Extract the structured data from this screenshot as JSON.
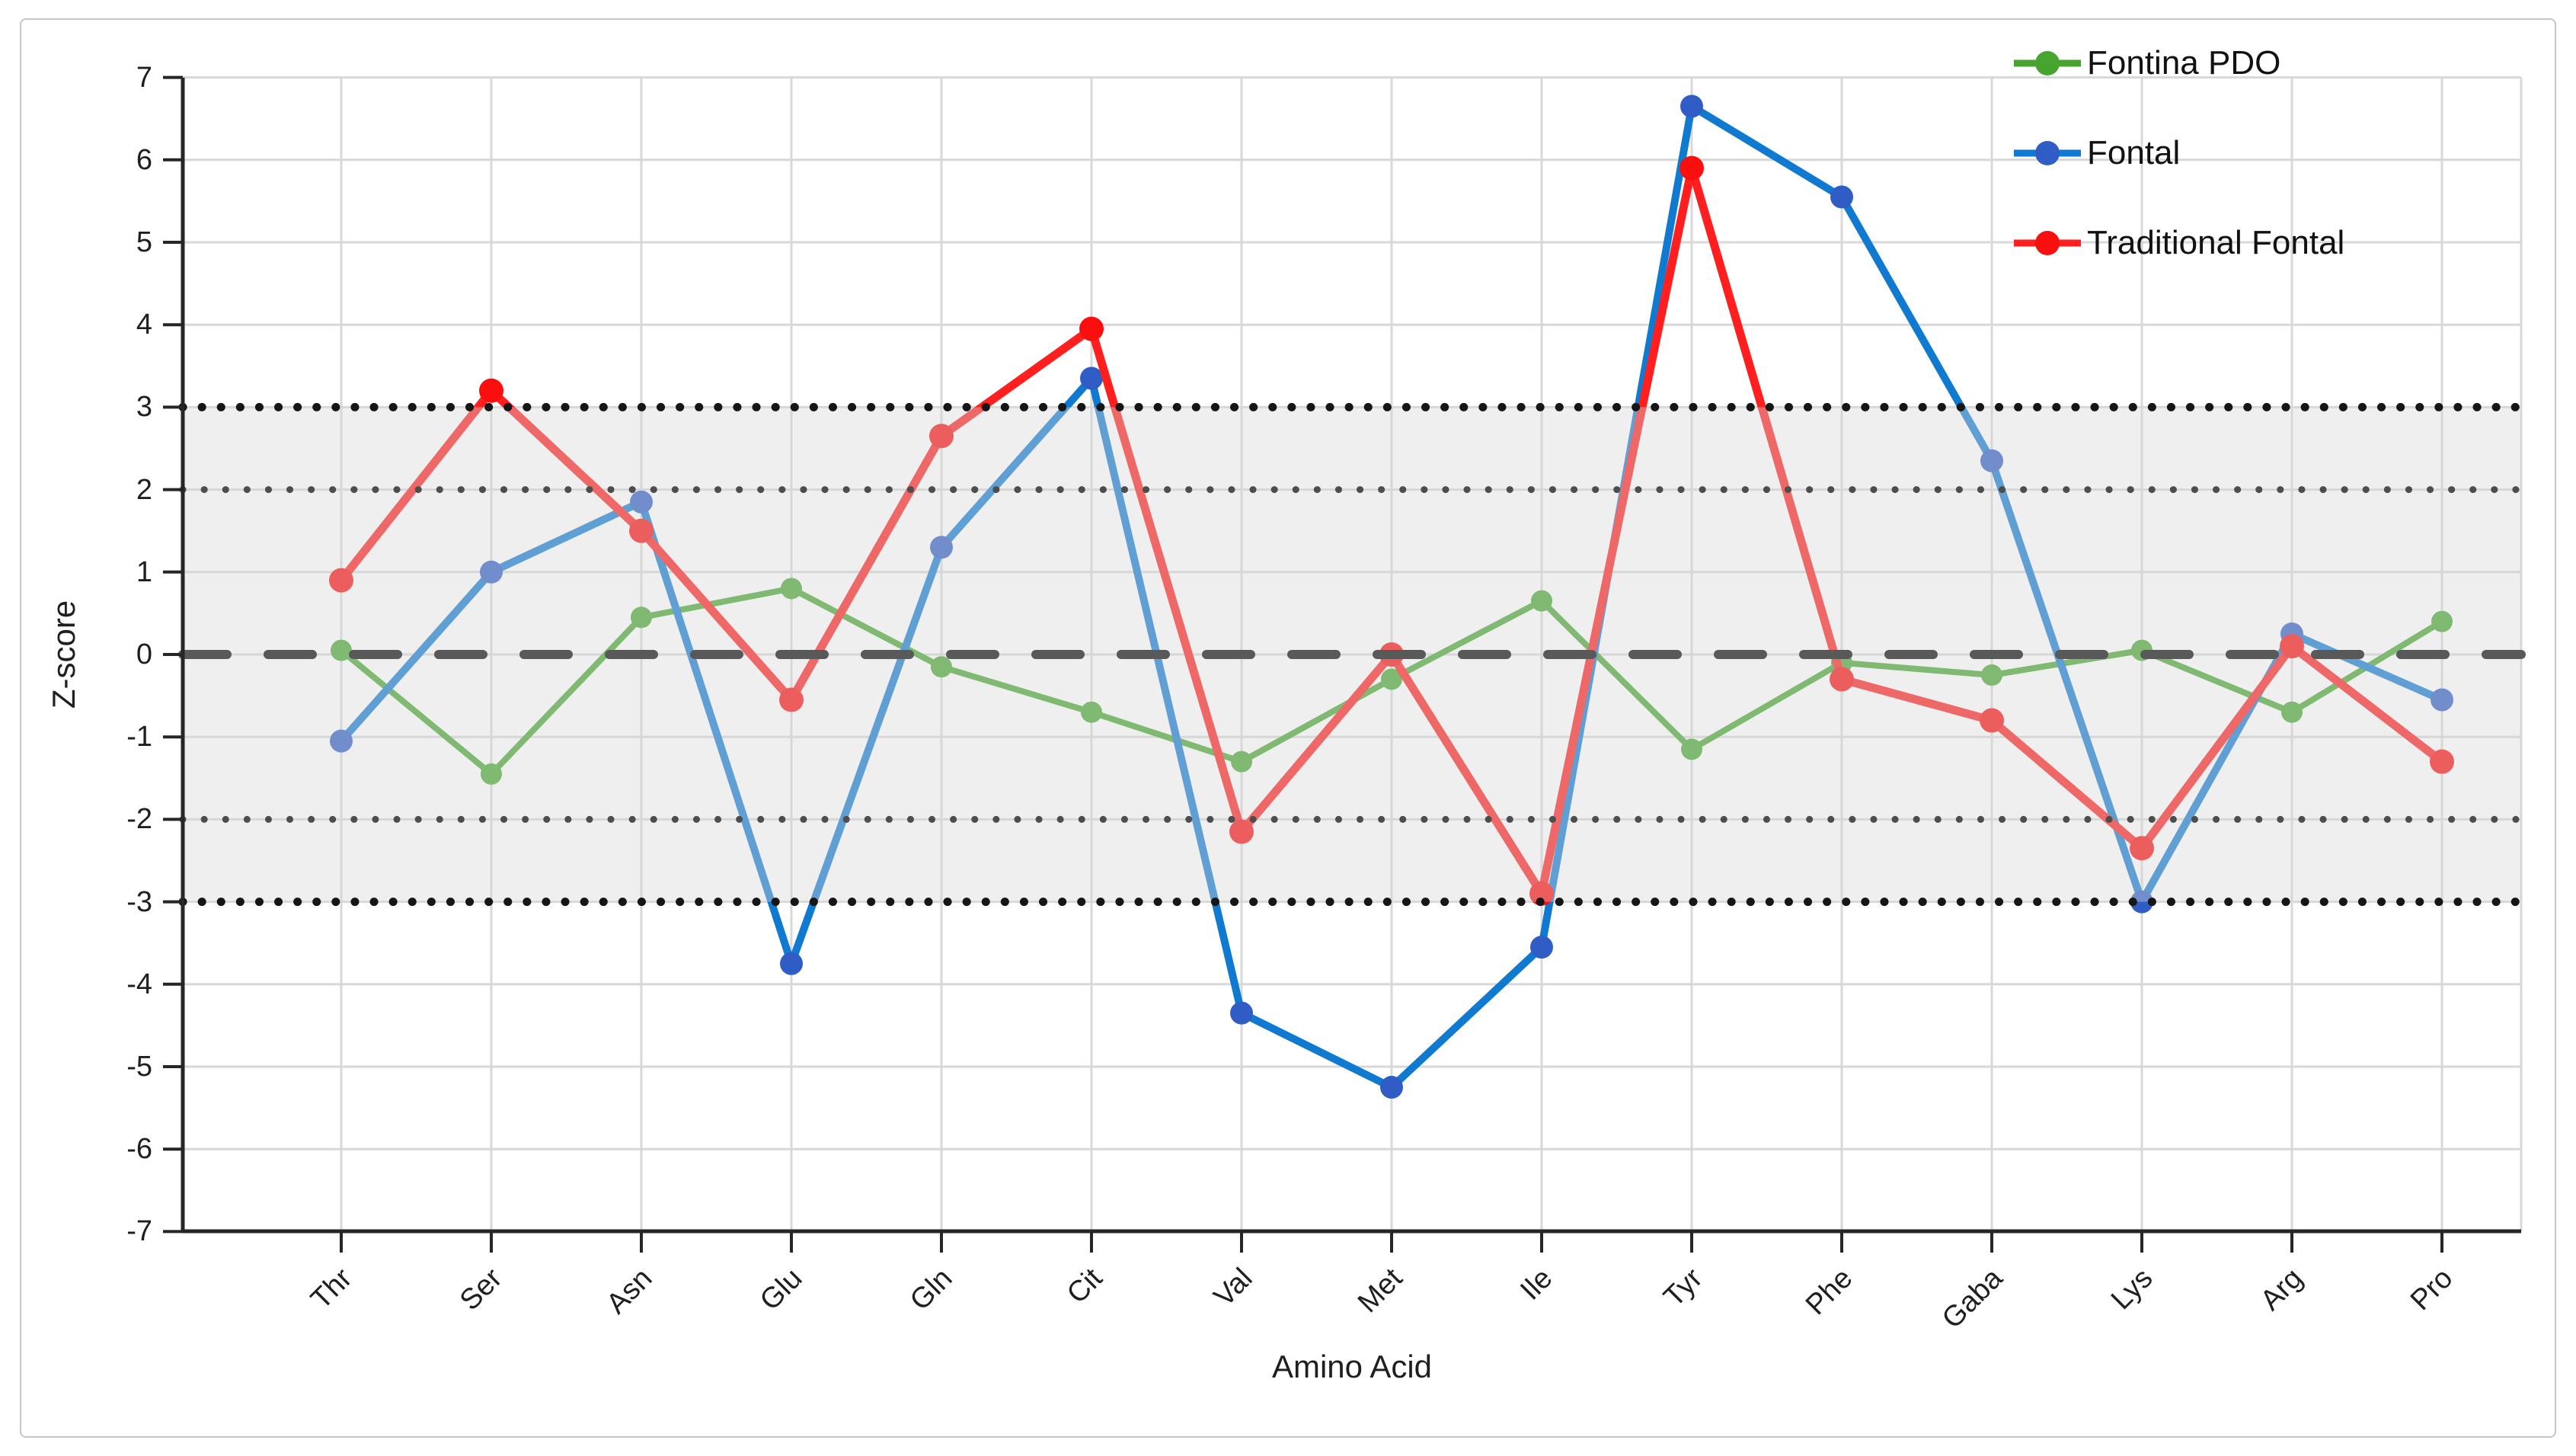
{
  "figure": {
    "background": "#ffffff",
    "border_color": "#c6c6c6"
  },
  "chart_data": {
    "type": "line",
    "title": "",
    "xlabel": "Amino Acid",
    "ylabel": "Z-score",
    "ylim": [
      -7,
      7
    ],
    "yticks": [
      7,
      6,
      5,
      4,
      3,
      2,
      1,
      0,
      -1,
      -2,
      -3,
      -4,
      -5,
      -6,
      -7
    ],
    "grid": true,
    "legend_position": "top-right",
    "categories": [
      "Thr",
      "Ser",
      "Asn",
      "Glu",
      "Gln",
      "Cit",
      "Val",
      "Met",
      "Ile",
      "Tyr",
      "Phe",
      "Gaba",
      "Lys",
      "Arg",
      "Pro"
    ],
    "series": [
      {
        "name": "Fontina PDO",
        "line_color": "#46a52e",
        "marker_color": "#46a52e",
        "values": [
          0.05,
          -1.45,
          0.45,
          0.8,
          -0.15,
          -0.7,
          -1.3,
          -0.3,
          0.65,
          -1.15,
          -0.1,
          -0.25,
          0.05,
          -0.7,
          0.4
        ]
      },
      {
        "name": "Fontal",
        "line_color": "#0f7ad0",
        "marker_color": "#2f5cc5",
        "values": [
          -1.05,
          1.0,
          1.85,
          -3.75,
          1.3,
          3.35,
          -4.35,
          -5.25,
          -3.55,
          6.65,
          5.55,
          2.35,
          -3.0,
          0.25,
          -0.55
        ]
      },
      {
        "name": "Traditional Fontal",
        "line_color": "#ff1f1f",
        "marker_color": "#fb0e0e",
        "values": [
          0.9,
          3.2,
          1.5,
          -0.55,
          2.65,
          3.95,
          -2.15,
          0.0,
          -2.9,
          5.9,
          -0.3,
          -0.8,
          -2.35,
          0.1,
          -1.3
        ]
      }
    ],
    "reference_lines": {
      "zero_dashed": {
        "y": 0,
        "color": "#595959"
      },
      "dotted_inner": {
        "y": [
          2,
          -2
        ],
        "color": "#4d4d4d"
      },
      "dotted_outer": {
        "y": [
          3,
          -3
        ],
        "color": "#161616"
      }
    },
    "band": {
      "from": -3,
      "to": 3,
      "overlay_color": "rgba(215,215,215,0.4)"
    },
    "gridline_color": "#d8d8d8",
    "axis_color": "#262626"
  }
}
